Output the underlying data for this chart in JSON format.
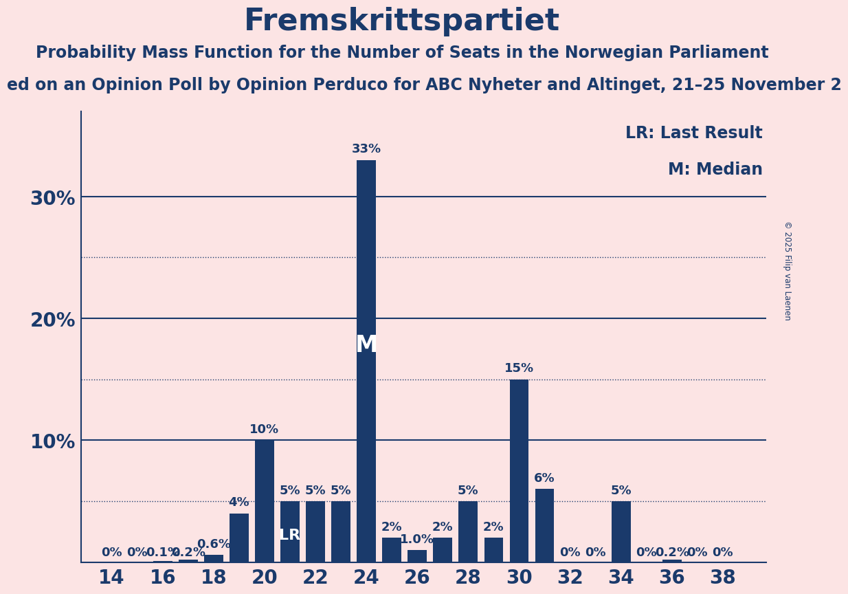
{
  "title": "Fremskrittspartiet",
  "subtitle1": "Probability Mass Function for the Number of Seats in the Norwegian Parliament",
  "subtitle2": "ed on an Opinion Poll by Opinion Perduco for ABC Nyheter and Altinget, 21–25 November 2",
  "copyright": "© 2025 Filip van Laenen",
  "seats": [
    14,
    15,
    16,
    17,
    18,
    19,
    20,
    21,
    22,
    23,
    24,
    25,
    26,
    27,
    28,
    29,
    30,
    31,
    32,
    33,
    34,
    35,
    36,
    37,
    38
  ],
  "probabilities": [
    0.0,
    0.0,
    0.1,
    0.2,
    0.6,
    4.0,
    10.0,
    5.0,
    5.0,
    5.0,
    33.0,
    2.0,
    1.0,
    2.0,
    5.0,
    2.0,
    15.0,
    6.0,
    0.0,
    0.0,
    5.0,
    0.0,
    0.2,
    0.0,
    0.0
  ],
  "bar_color": "#1a3a6b",
  "background_color": "#fce4e4",
  "text_color": "#1a3a6b",
  "median_seat": 24,
  "lr_seat": 21,
  "xlabel_seats": [
    14,
    16,
    18,
    20,
    22,
    24,
    26,
    28,
    30,
    32,
    34,
    36,
    38
  ],
  "solid_gridlines": [
    10.0,
    20.0,
    30.0
  ],
  "dotted_gridlines": [
    5.0,
    15.0,
    25.0
  ],
  "label_map": {
    "14": "0%",
    "15": "0%",
    "16": "0.1%",
    "17": "0.2%",
    "18": "0.6%",
    "19": "4%",
    "20": "10%",
    "21": "5%",
    "22": "5%",
    "23": "5%",
    "24": "33%",
    "25": "2%",
    "26": "1.0%",
    "27": "2%",
    "28": "5%",
    "29": "2%",
    "30": "15%",
    "31": "6%",
    "32": "0%",
    "33": "0%",
    "34": "5%",
    "35": "0%",
    "36": "0.2%",
    "37": "0%",
    "38": "0%"
  },
  "lr_label": "LR",
  "median_label": "M",
  "legend_lr": "LR: Last Result",
  "legend_m": "M: Median",
  "title_fontsize": 32,
  "subtitle1_fontsize": 17,
  "subtitle2_fontsize": 17,
  "axis_fontsize": 20,
  "bar_label_fontsize": 13,
  "legend_fontsize": 17
}
